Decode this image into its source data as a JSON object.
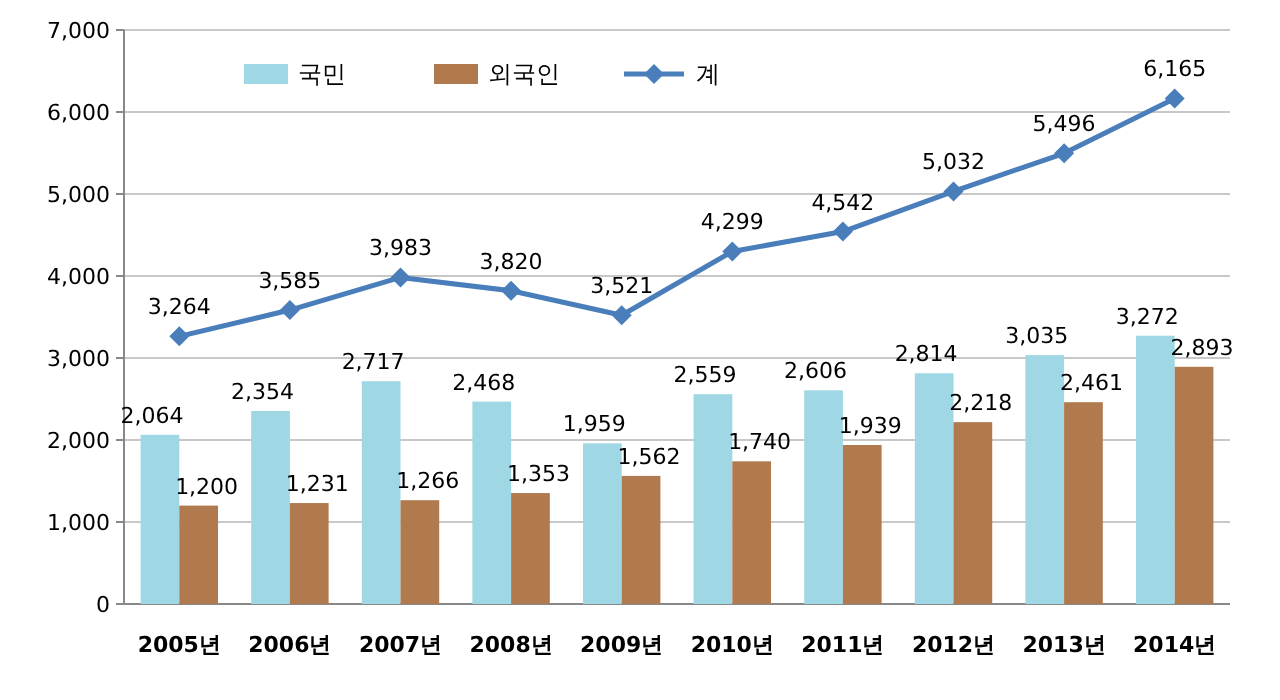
{
  "chart_data": {
    "type": "bar",
    "categories": [
      "2005년",
      "2006년",
      "2007년",
      "2008년",
      "2009년",
      "2010년",
      "2011년",
      "2012년",
      "2013년",
      "2014년"
    ],
    "series": [
      {
        "name": "국민",
        "color": "#9fd8e4",
        "values": [
          2064,
          2354,
          2717,
          2468,
          1959,
          2559,
          2606,
          2814,
          3035,
          3272
        ],
        "value_labels": [
          "2,064",
          "2,354",
          "2,717",
          "2,468",
          "1,959",
          "2,559",
          "2,606",
          "2,814",
          "3,035",
          "3,272"
        ]
      },
      {
        "name": "외국인",
        "color": "#b07a4e",
        "values": [
          1200,
          1231,
          1266,
          1353,
          1562,
          1740,
          1939,
          2218,
          2461,
          2893
        ],
        "value_labels": [
          "1,200",
          "1,231",
          "1,266",
          "1,353",
          "1,562",
          "1,740",
          "1,939",
          "2,218",
          "2,461",
          "2,893"
        ]
      },
      {
        "name": "계",
        "type": "line",
        "color": "#4a7ebb",
        "marker": "diamond",
        "values": [
          3264,
          3585,
          3983,
          3820,
          3521,
          4299,
          4542,
          5032,
          5496,
          6165
        ],
        "value_labels": [
          "3,264",
          "3,585",
          "3,983",
          "3,820",
          "3,521",
          "4,299",
          "4,542",
          "5,032",
          "5,496",
          "6,165"
        ]
      }
    ],
    "ylim": [
      0,
      7000
    ],
    "yticks": [
      {
        "value": 0,
        "label": "0"
      },
      {
        "value": 1000,
        "label": "1,000"
      },
      {
        "value": 2000,
        "label": "2,000"
      },
      {
        "value": 3000,
        "label": "3,000"
      },
      {
        "value": 4000,
        "label": "4,000"
      },
      {
        "value": 5000,
        "label": "5,000"
      },
      {
        "value": 6000,
        "label": "6,000"
      },
      {
        "value": 7000,
        "label": "7,000"
      }
    ],
    "grid": "y",
    "legend": "top left"
  }
}
